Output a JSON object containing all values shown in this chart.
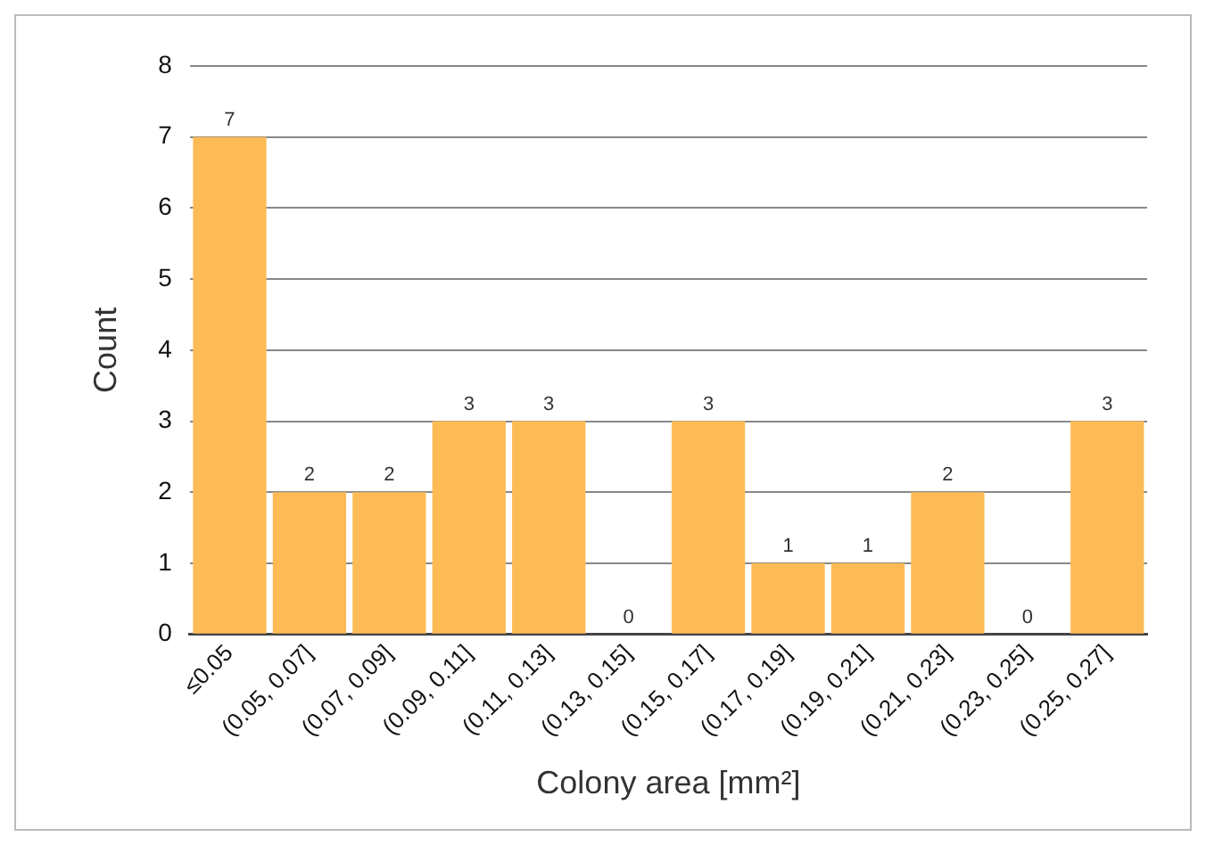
{
  "chart_data": {
    "type": "bar",
    "categories": [
      "≤0.05",
      "(0.05, 0.07]",
      "(0.07, 0.09]",
      "(0.09, 0.11]",
      "(0.11, 0.13]",
      "(0.13, 0.15]",
      "(0.15, 0.17]",
      "(0.17, 0.19]",
      "(0.19, 0.21]",
      "(0.21, 0.23]",
      "(0.23, 0.25]",
      "(0.25, 0.27]"
    ],
    "values": [
      7,
      2,
      2,
      3,
      3,
      0,
      3,
      1,
      1,
      2,
      0,
      3
    ],
    "color": "#fdbb55",
    "xlabel": "Colony area [mm²]",
    "ylabel": "Count",
    "ylim": [
      0,
      8
    ],
    "yticks": [
      0,
      1,
      2,
      3,
      4,
      5,
      6,
      7,
      8
    ],
    "grid": "y",
    "data_labels": true,
    "legend": false
  }
}
